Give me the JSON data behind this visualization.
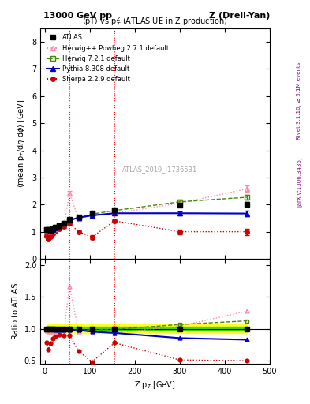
{
  "title_left": "13000 GeV pp",
  "title_right": "Z (Drell-Yan)",
  "plot_title": "<pT> vs p$^Z_T$ (ATLAS UE in Z production)",
  "ylabel_main": "<mean p$_T$/d$\\eta$ d$\\phi$> [GeV]",
  "ylabel_ratio": "Ratio to ATLAS",
  "xlabel": "Z p$_T$ [GeV]",
  "watermark": "ATLAS_2019_I1736531",
  "right_label_top": "Rivet 3.1.10, ≥ 3.1M events",
  "right_label_bot": "[arXiv:1306.3436]",
  "ylim_main": [
    0.0,
    8.5
  ],
  "ylim_ratio": [
    0.45,
    2.1
  ],
  "vlines": [
    55,
    155
  ],
  "atlas_x": [
    4,
    8,
    13,
    18,
    24,
    32,
    43,
    55,
    75,
    105,
    155,
    300,
    450
  ],
  "atlas_y": [
    1.08,
    1.07,
    1.06,
    1.1,
    1.15,
    1.22,
    1.32,
    1.45,
    1.55,
    1.68,
    1.8,
    1.97,
    2.02
  ],
  "atlas_yerr": [
    0.04,
    0.03,
    0.03,
    0.03,
    0.03,
    0.03,
    0.03,
    0.04,
    0.04,
    0.05,
    0.05,
    0.06,
    0.08
  ],
  "herwig_pp_x": [
    4,
    8,
    13,
    18,
    24,
    32,
    43,
    55,
    75,
    105,
    155,
    300,
    450
  ],
  "herwig_pp_y": [
    1.05,
    1.03,
    1.01,
    1.05,
    1.1,
    1.2,
    1.3,
    2.42,
    1.48,
    1.6,
    1.68,
    2.05,
    2.58
  ],
  "herwig_pp_yerr": [
    0.03,
    0.02,
    0.02,
    0.02,
    0.02,
    0.03,
    0.03,
    0.08,
    0.04,
    0.05,
    0.06,
    0.09,
    0.12
  ],
  "herwig72_x": [
    4,
    8,
    13,
    18,
    24,
    32,
    43,
    55,
    75,
    105,
    155,
    300,
    450
  ],
  "herwig72_y": [
    1.07,
    1.07,
    1.06,
    1.1,
    1.15,
    1.22,
    1.32,
    1.42,
    1.52,
    1.65,
    1.78,
    2.1,
    2.27
  ],
  "herwig72_yerr": [
    0.03,
    0.02,
    0.02,
    0.02,
    0.02,
    0.03,
    0.03,
    0.04,
    0.04,
    0.05,
    0.05,
    0.08,
    0.1
  ],
  "pythia_x": [
    4,
    8,
    13,
    18,
    24,
    32,
    43,
    55,
    75,
    105,
    155,
    300,
    450
  ],
  "pythia_y": [
    1.07,
    1.07,
    1.06,
    1.09,
    1.13,
    1.2,
    1.3,
    1.42,
    1.52,
    1.6,
    1.68,
    1.68,
    1.67
  ],
  "pythia_yerr": [
    0.03,
    0.02,
    0.02,
    0.02,
    0.02,
    0.03,
    0.03,
    0.04,
    0.04,
    0.05,
    0.05,
    0.08,
    0.1
  ],
  "sherpa_x": [
    4,
    8,
    13,
    18,
    24,
    32,
    43,
    55,
    75,
    105,
    155,
    300,
    450
  ],
  "sherpa_y": [
    0.85,
    0.72,
    0.82,
    0.93,
    1.02,
    1.1,
    1.18,
    1.3,
    1.0,
    0.8,
    1.4,
    1.0,
    1.0
  ],
  "sherpa_yerr": [
    0.04,
    0.03,
    0.03,
    0.03,
    0.03,
    0.03,
    0.04,
    0.05,
    0.05,
    0.06,
    0.06,
    0.09,
    0.12
  ],
  "atlas_band_inner": 0.03,
  "atlas_band_outer": 0.07,
  "color_herwig_pp": "#ff88aa",
  "color_herwig72": "#448800",
  "color_pythia": "#0000cc",
  "color_sherpa": "#cc0000",
  "color_atlas": "#000000"
}
